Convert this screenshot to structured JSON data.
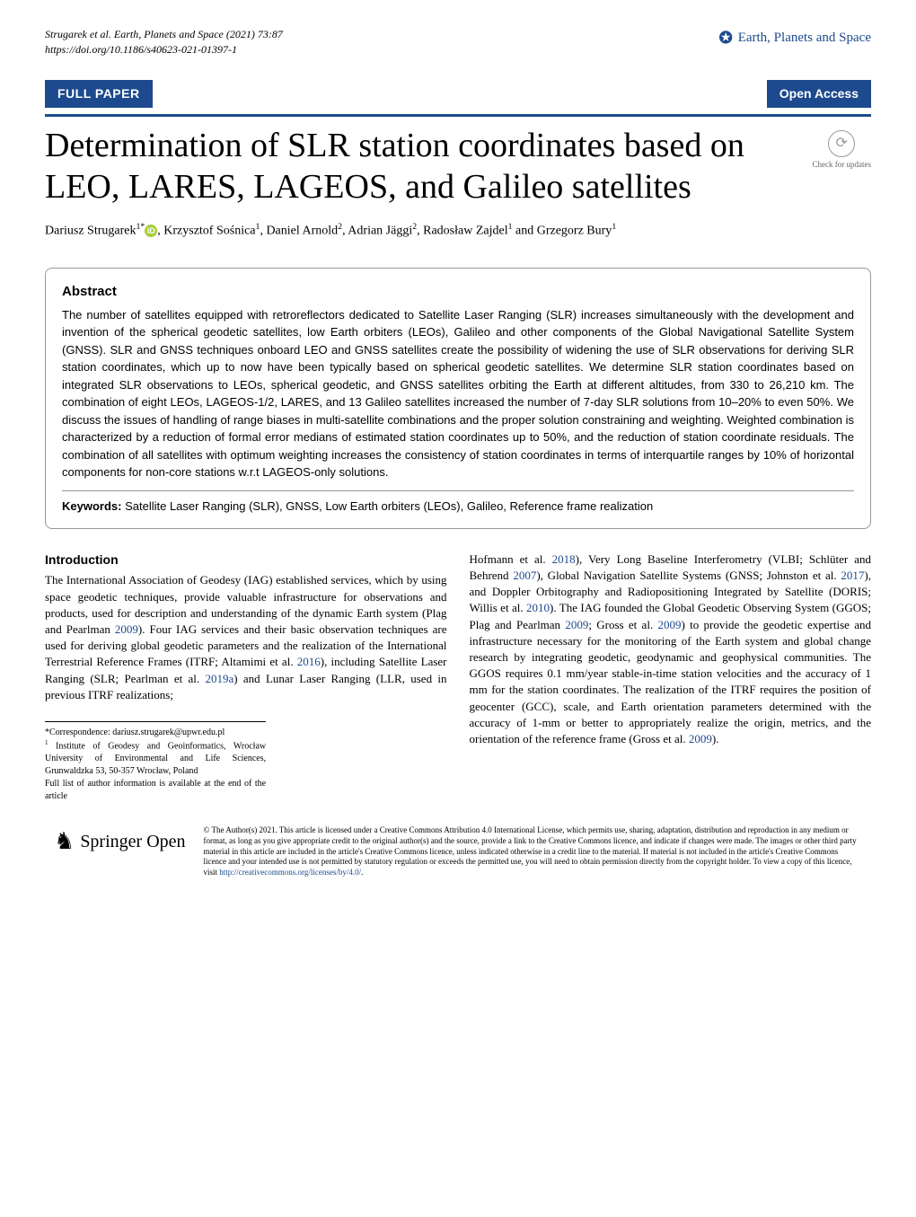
{
  "header": {
    "citation_line1": "Strugarek et al. Earth, Planets and Space       (2021) 73:87",
    "citation_line2": "https://doi.org/10.1186/s40623-021-01397-1",
    "brand": "Earth, Planets and Space"
  },
  "badges": {
    "full_paper": "FULL PAPER",
    "open_access": "Open Access",
    "updates_text": "Check for updates"
  },
  "title": "Determination of SLR station coordinates based on LEO, LARES, LAGEOS, and Galileo satellites",
  "authors": {
    "a1_name": "Dariusz Strugarek",
    "a1_sup": "1*",
    "a2_name": ", Krzysztof Sośnica",
    "a2_sup": "1",
    "a3_name": ", Daniel Arnold",
    "a3_sup": "2",
    "a4_name": ", Adrian Jäggi",
    "a4_sup": "2",
    "a5_name": ", Radosław Zajdel",
    "a5_sup": "1",
    "a6_name": " and Grzegorz Bury",
    "a6_sup": "1"
  },
  "abstract": {
    "title": "Abstract",
    "text": "The number of satellites equipped with retroreflectors dedicated to Satellite Laser Ranging (SLR) increases simultaneously with the development and invention of the spherical geodetic satellites, low Earth orbiters (LEOs), Galileo and other components of the Global Navigational Satellite System (GNSS). SLR and GNSS techniques onboard LEO and GNSS satellites create the possibility of widening the use of SLR observations for deriving SLR station coordinates, which up to now have been typically based on spherical geodetic satellites. We determine SLR station coordinates based on integrated SLR observations to LEOs, spherical geodetic, and GNSS satellites orbiting the Earth at different altitudes, from 330 to 26,210 km. The combination of eight LEOs, LAGEOS-1/2, LARES, and 13 Galileo satellites increased the number of 7-day SLR solutions from 10–20% to even 50%. We discuss the issues of handling of range biases in multi-satellite combinations and the proper solution constraining and weighting. Weighted combination is characterized by a reduction of formal error medians of estimated station coordinates up to 50%, and the reduction of station coordinate residuals. The combination of all satellites with optimum weighting increases the consistency of station coordinates in terms of interquartile ranges by 10% of horizontal components for non-core stations w.r.t LAGEOS-only solutions.",
    "keywords_label": "Keywords: ",
    "keywords_text": "Satellite Laser Ranging (SLR), GNSS, Low Earth orbiters (LEOs), Galileo, Reference frame realization"
  },
  "intro": {
    "title": "Introduction",
    "col1_p1": "The International Association of Geodesy (IAG) established services, which by using space geodetic techniques, provide valuable infrastructure for observations and products, used for description and understanding of the dynamic Earth system (Plag and Pearlman ",
    "col1_y1": "2009",
    "col1_p2": "). Four IAG services and their basic observation techniques are used for deriving global geodetic parameters and the realization of the International Terrestrial Reference Frames (ITRF; Altamimi et al. ",
    "col1_y2": "2016",
    "col1_p3": "), including Satellite Laser Ranging (SLR; Pearlman et al. ",
    "col1_y3": "2019a",
    "col1_p4": ") and Lunar Laser Ranging (LLR, used in previous ITRF realizations;",
    "col2_p1": "Hofmann et al. ",
    "col2_y1": "2018",
    "col2_p2": "), Very Long Baseline Interferometry (VLBI; Schlüter and Behrend ",
    "col2_y2": "2007",
    "col2_p3": "), Global Navigation Satellite Systems (GNSS; Johnston et al. ",
    "col2_y3": "2017",
    "col2_p4": "), and Doppler Orbitography and Radiopositioning Integrated by Satellite (DORIS; Willis et al. ",
    "col2_y4": "2010",
    "col2_p5": "). The IAG founded the Global Geodetic Observing System (GGOS; Plag and Pearlman ",
    "col2_y5": "2009",
    "col2_p6": "; Gross et al. ",
    "col2_y6": "2009",
    "col2_p7": ") to provide the geodetic expertise and infrastructure necessary for the monitoring of the Earth system and global change research by integrating geodetic, geodynamic and geophysical communities. The GGOS requires 0.1 mm/year stable-in-time station velocities and the accuracy of 1 mm for the station coordinates. The realization of the ITRF requires the position of geocenter (GCC), scale, and Earth orientation parameters determined with the accuracy of 1-mm or better to appropriately realize the origin, metrics, and the orientation of the reference frame (Gross et al. ",
    "col2_y7": "2009",
    "col2_p8": ")."
  },
  "footnotes": {
    "correspondence": "*Correspondence:  dariusz.strugarek@upwr.edu.pl",
    "affil1_sup": "1",
    "affil1": " Institute of Geodesy and Geoinformatics, Wrocław University of Environmental and Life Sciences, Grunwaldzka 53, 50-357 Wrocław, Poland",
    "full_list": "Full list of author information is available at the end of the article"
  },
  "footer": {
    "springer": "Springer",
    "open": "Open",
    "license": "© The Author(s) 2021. This article is licensed under a Creative Commons Attribution 4.0 International License, which permits use, sharing, adaptation, distribution and reproduction in any medium or format, as long as you give appropriate credit to the original author(s) and the source, provide a link to the Creative Commons licence, and indicate if changes were made. The images or other third party material in this article are included in the article's Creative Commons licence, unless indicated otherwise in a credit line to the material. If material is not included in the article's Creative Commons licence and your intended use is not permitted by statutory regulation or exceeds the permitted use, you will need to obtain permission directly from the copyright holder. To view a copy of this licence, visit ",
    "license_link": "http://creativecommons.org/licenses/by/4.0/",
    "license_end": "."
  },
  "colors": {
    "primary": "#1d4a8e",
    "orcid": "#a6ce39"
  }
}
